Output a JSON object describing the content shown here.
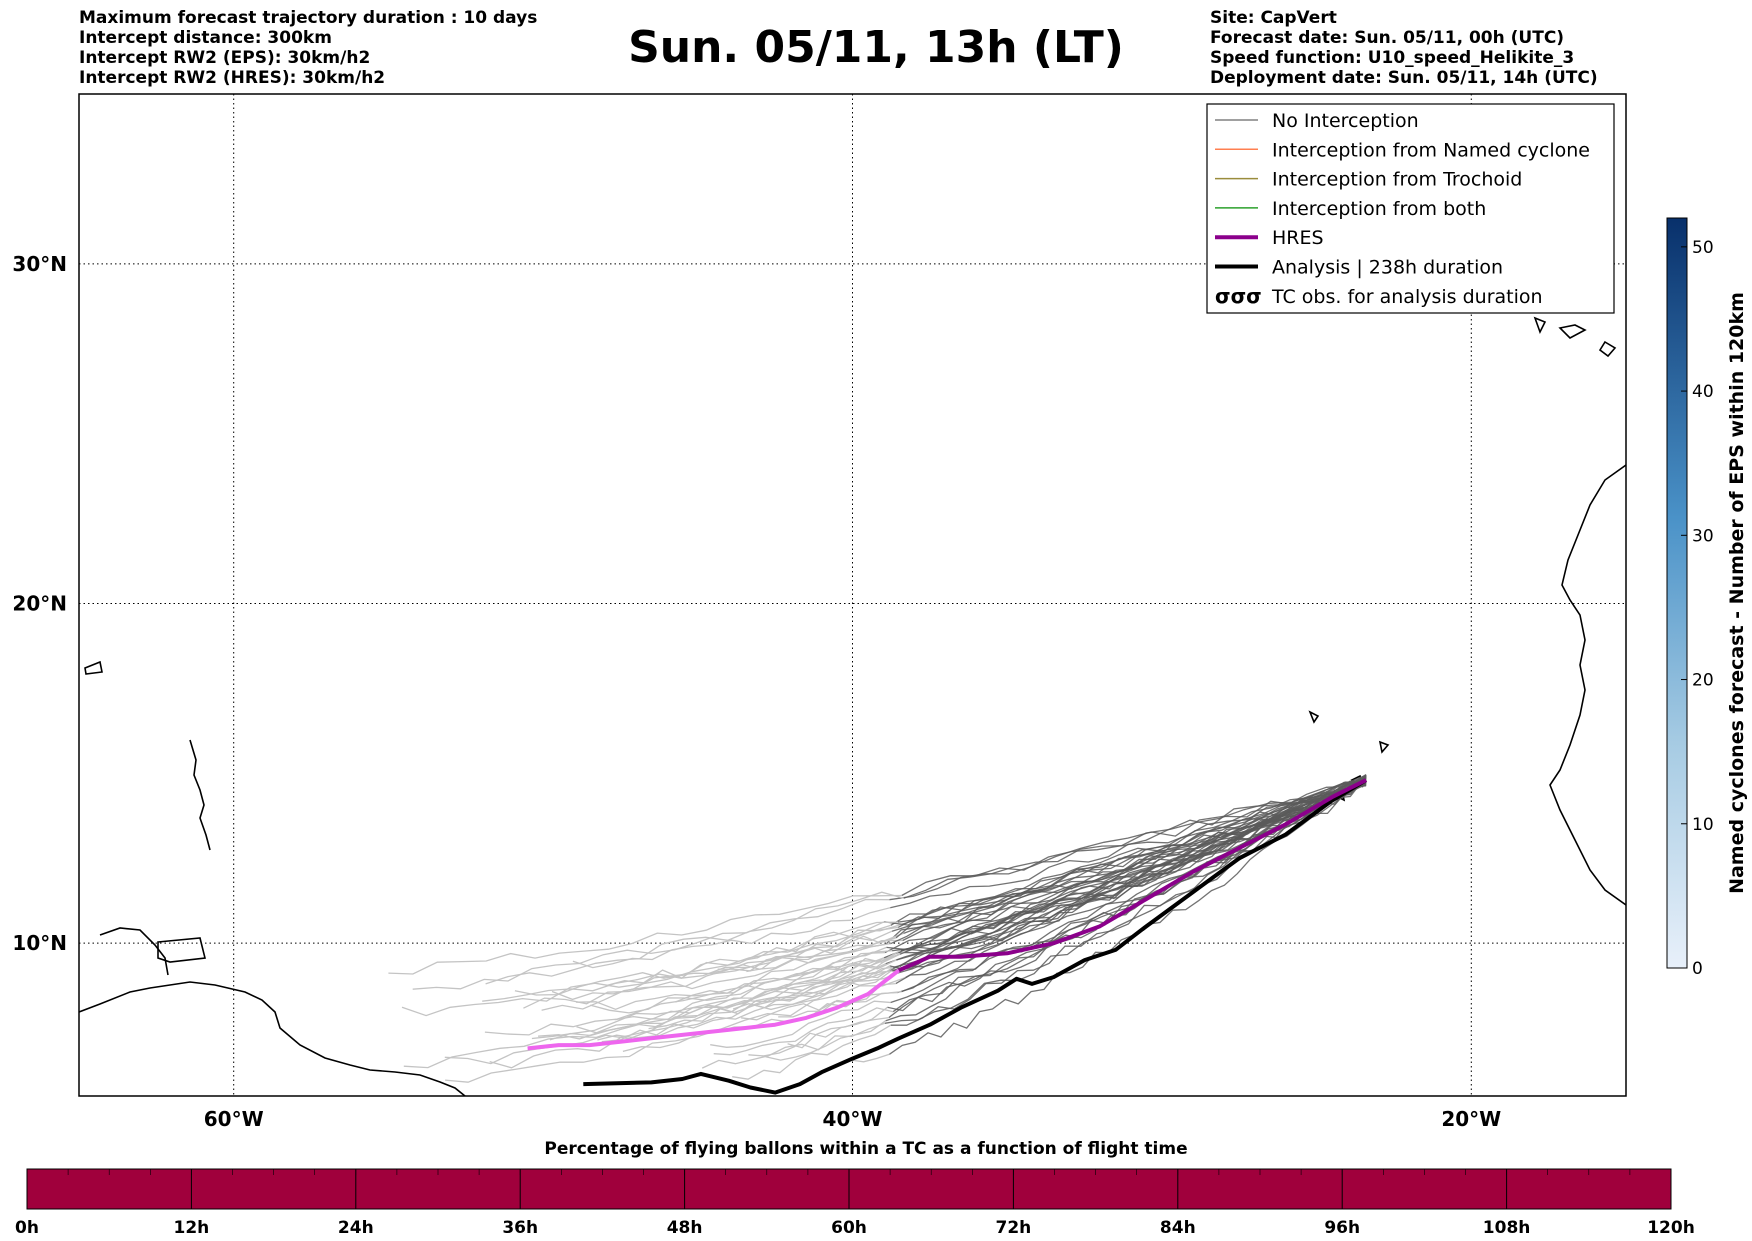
{
  "header": {
    "left_lines": [
      "Maximum forecast trajectory duration : 10 days",
      "Intercept distance: 300km",
      "Intercept RW2 (EPS):  30km/h2",
      "Intercept RW2 (HRES): 30km/h2"
    ],
    "title": "Sun. 05/11, 13h (LT)",
    "right_lines": [
      "Site: CapVert",
      "Forecast date: Sun. 05/11, 00h (UTC)",
      "Speed function: U10_speed_Helikite_3",
      "Deployment date: Sun. 05/11, 14h (UTC)"
    ]
  },
  "colors": {
    "no_interception": "#808080",
    "named_cyclone": "#ff7f50",
    "trochoid": "#9a8c3c",
    "both": "#2ca02c",
    "hres": "#8b008b",
    "hres_light": "#ee66ee",
    "analysis": "#000000",
    "percentage_bar": "#a0003c",
    "colorbar_low": "#e8f0fa",
    "colorbar_high": "#08306b"
  },
  "chart_data": {
    "type": "map",
    "lon_range": [
      -65,
      -15
    ],
    "lat_range": [
      5.5,
      35
    ],
    "lon_ticks": [
      {
        "value": -60,
        "label": "60°W"
      },
      {
        "value": -40,
        "label": "40°W"
      },
      {
        "value": -20,
        "label": "20°W"
      }
    ],
    "lat_ticks": [
      {
        "value": 30,
        "label": "30°N"
      },
      {
        "value": 20,
        "label": "20°N"
      },
      {
        "value": 10,
        "label": "10°N"
      }
    ],
    "grid": true,
    "legend_position": "top-right",
    "legend": [
      {
        "label": "No Interception",
        "style": "thin-gray"
      },
      {
        "label": "Interception from Named cyclone",
        "style": "thin-orange"
      },
      {
        "label": "Interception from Trochoid",
        "style": "thin-olive"
      },
      {
        "label": "Interception from both",
        "style": "thin-green"
      },
      {
        "label": "HRES",
        "style": "thick-purple"
      },
      {
        "label": "Analysis | 238h duration",
        "style": "thick-black"
      },
      {
        "label": "TC obs. for analysis duration",
        "style": "tc-symbol"
      }
    ],
    "hres_track": [
      [
        -23.4,
        14.8
      ],
      [
        -24.5,
        14.3
      ],
      [
        -26,
        13.5
      ],
      [
        -27.5,
        12.8
      ],
      [
        -29,
        12.1
      ],
      [
        -30.5,
        11.3
      ],
      [
        -32,
        10.5
      ],
      [
        -33.5,
        10
      ],
      [
        -35,
        9.7
      ],
      [
        -36.5,
        9.6
      ],
      [
        -37.5,
        9.6
      ],
      [
        -38.5,
        9.2
      ],
      [
        -39.5,
        8.5
      ],
      [
        -40.5,
        8.1
      ],
      [
        -41.5,
        7.8
      ],
      [
        -42.5,
        7.6
      ],
      [
        -43.5,
        7.5
      ],
      [
        -44.5,
        7.4
      ],
      [
        -45.5,
        7.3
      ],
      [
        -46.5,
        7.2
      ],
      [
        -47.5,
        7.1
      ],
      [
        -48.5,
        7.0
      ],
      [
        -49.5,
        7.0
      ],
      [
        -50.5,
        6.9
      ]
    ],
    "analysis_track": [
      [
        -23.4,
        14.8
      ],
      [
        -24.5,
        14.2
      ],
      [
        -26,
        13.2
      ],
      [
        -27.5,
        12.5
      ],
      [
        -29,
        11.5
      ],
      [
        -30.5,
        10.5
      ],
      [
        -31.5,
        9.8
      ],
      [
        -32.5,
        9.5
      ],
      [
        -33.5,
        9
      ],
      [
        -34.2,
        8.8
      ],
      [
        -34.7,
        8.95
      ],
      [
        -35.3,
        8.6
      ],
      [
        -36.5,
        8.1
      ],
      [
        -37.5,
        7.6
      ],
      [
        -38.5,
        7.2
      ],
      [
        -39.2,
        6.9
      ],
      [
        -40,
        6.6
      ],
      [
        -41,
        6.2
      ],
      [
        -41.7,
        5.85
      ],
      [
        -42.5,
        5.6
      ],
      [
        -43.3,
        5.75
      ],
      [
        -44,
        5.95
      ],
      [
        -44.9,
        6.15
      ],
      [
        -45.5,
        6.0
      ],
      [
        -46.5,
        5.9
      ],
      [
        -48.7,
        5.85
      ]
    ],
    "ensemble_spread": {
      "start": [
        -23.4,
        14.8
      ],
      "west_end_lon_range": [
        -55,
        -40
      ],
      "west_end_lat_range": [
        5.7,
        9.5
      ],
      "dark_segment_to_lon": -39
    },
    "colorbar": {
      "label": "Named cyclones forecast - Number of EPS within 120km",
      "range": [
        0,
        52
      ],
      "ticks": [
        0,
        10,
        20,
        30,
        40,
        50
      ]
    },
    "percentage_bar": {
      "title": "Percentage of flying ballons within a TC as a function of flight time",
      "range_hours": [
        0,
        120
      ],
      "tick_labels": [
        "0h",
        "12h",
        "24h",
        "36h",
        "48h",
        "60h",
        "72h",
        "84h",
        "96h",
        "108h",
        "120h"
      ],
      "values_percent": [
        0,
        0,
        0,
        0,
        0,
        0,
        0,
        0,
        0,
        0,
        0
      ]
    }
  }
}
